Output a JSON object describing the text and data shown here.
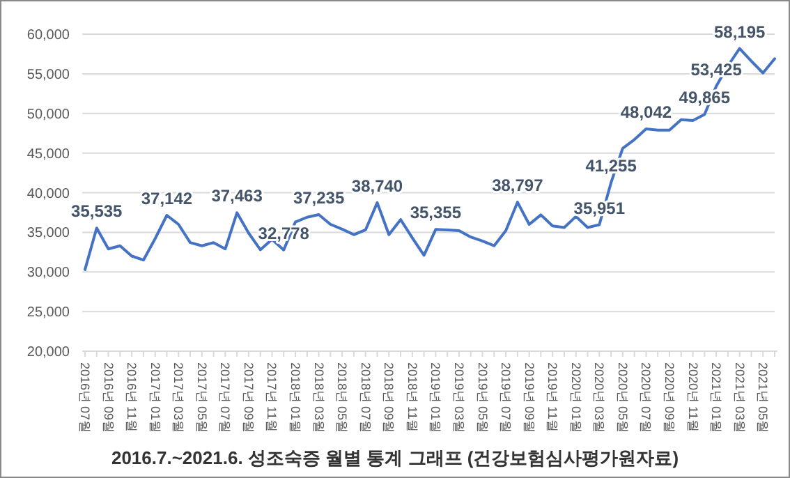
{
  "chart_data": {
    "type": "line",
    "title": "2016.7.~2021.6. 성조숙증 월별 통계 그래프 (건강보험심사평가원자료)",
    "categories": [
      "2016년 07월",
      null,
      "2016년 09월",
      null,
      "2016년 11월",
      null,
      "2017년 01월",
      null,
      "2017년 03월",
      null,
      "2017년 05월",
      null,
      "2017년 07월",
      null,
      "2017년 09월",
      null,
      "2017년 11월",
      null,
      "2018년 01월",
      null,
      "2018년 03월",
      null,
      "2018년 05월",
      null,
      "2018년 07월",
      null,
      "2018년 09월",
      null,
      "2018년 11월",
      null,
      "2019년 01월",
      null,
      "2019년 03월",
      null,
      "2019년 05월",
      null,
      "2019년 07월",
      null,
      "2019년 09월",
      null,
      "2019년 11월",
      null,
      "2020년 01월",
      null,
      "2020년 03월",
      null,
      "2020년 05월",
      null,
      "2020년 07월",
      null,
      "2020년 09월",
      null,
      "2020년 11월",
      null,
      "2021년 01월",
      null,
      "2021년 03월",
      null,
      "2021년 05월",
      null
    ],
    "series": [
      {
        "color": "#4472c4",
        "values": [
          30300,
          35535,
          32900,
          33300,
          32000,
          31500,
          34200,
          37142,
          36000,
          33700,
          33300,
          33700,
          32900,
          37463,
          34900,
          32800,
          34100,
          32778,
          36300,
          36900,
          37235,
          36000,
          35400,
          34700,
          35300,
          38740,
          34700,
          36600,
          34300,
          32100,
          35355,
          35300,
          35200,
          34400,
          33900,
          33300,
          35200,
          38797,
          36000,
          37200,
          35800,
          35600,
          37000,
          35600,
          35951,
          41255,
          45600,
          46700,
          48042,
          47900,
          47900,
          49200,
          49100,
          49865,
          53425,
          56000,
          58195,
          56600,
          55100,
          56900
        ],
        "value_labels": [
          null,
          "35,535",
          null,
          null,
          null,
          null,
          null,
          "37,142",
          null,
          null,
          null,
          null,
          null,
          "37,463",
          null,
          null,
          null,
          "32,778",
          null,
          null,
          "37,235",
          null,
          null,
          null,
          null,
          "38,740",
          null,
          null,
          null,
          null,
          "35,355",
          null,
          null,
          null,
          null,
          null,
          null,
          "38,797",
          null,
          null,
          null,
          null,
          null,
          null,
          "35,951",
          "41,255",
          null,
          null,
          "48,042",
          null,
          null,
          null,
          null,
          "49,865",
          "53,425",
          null,
          "58,195",
          null,
          null,
          null
        ]
      }
    ],
    "ylim": [
      20000,
      60000
    ],
    "yticks": [
      {
        "value": 20000,
        "label": "20,000"
      },
      {
        "value": 25000,
        "label": "25,000"
      },
      {
        "value": 30000,
        "label": "30,000"
      },
      {
        "value": 35000,
        "label": "35,000"
      },
      {
        "value": 40000,
        "label": "40,000"
      },
      {
        "value": 45000,
        "label": "45,000"
      },
      {
        "value": 50000,
        "label": "50,000"
      },
      {
        "value": 55000,
        "label": "55,000"
      },
      {
        "value": 60000,
        "label": "60,000"
      }
    ],
    "grid": "y",
    "marker": "none",
    "line_style": "solid"
  }
}
